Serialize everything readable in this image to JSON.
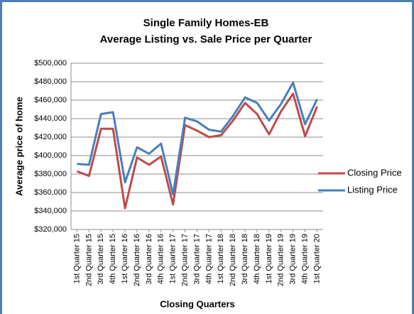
{
  "chart_data": {
    "type": "line",
    "title": [
      "Single Family Homes-EB",
      "Average Listing vs. Sale Price per Quarter"
    ],
    "x_label": "Closing Quarters",
    "y_label": "Average price of home",
    "categories": [
      "1st Quarter 15",
      "2nd Quarter 15",
      "3rd Quarter 15",
      "4th Quarter 15",
      "1st Quarter 16",
      "2nd Quarter 16",
      "3rd Quarter 16",
      "4th Quarter 16",
      "1st Quarter 17",
      "2nd Quarter 17",
      "3rd Quarter 17",
      "4th Quarter 17",
      "1st Quarter 18",
      "2nd Quarter 18",
      "3rd Quarter 18",
      "4th Quarter 18",
      "1st Quarter 19",
      "2nd Quarter 19",
      "3rd Quarter 19",
      "4th Quarter 19",
      "1st Quarter 20"
    ],
    "series": [
      {
        "name": "Closing Price",
        "color": "#be4b48",
        "values": [
          383000,
          378000,
          429000,
          429000,
          343000,
          398000,
          390000,
          399000,
          347000,
          433000,
          427000,
          420000,
          422000,
          438000,
          457000,
          445000,
          423000,
          448000,
          467000,
          421000,
          453000
        ]
      },
      {
        "name": "Listing Price",
        "color": "#4a7ebb",
        "values": [
          391000,
          390000,
          445000,
          447000,
          371000,
          409000,
          402000,
          413000,
          358000,
          441000,
          437000,
          428000,
          426000,
          443000,
          463000,
          457000,
          438000,
          456000,
          479000,
          434000,
          461000
        ]
      }
    ],
    "ylim": [
      320000,
      500000
    ],
    "yticks": [
      {
        "value": 320000,
        "label": "$320,000"
      },
      {
        "value": 340000,
        "label": "$340,000"
      },
      {
        "value": 360000,
        "label": "$360,000"
      },
      {
        "value": 380000,
        "label": "$380,000"
      },
      {
        "value": 400000,
        "label": "$400,000"
      },
      {
        "value": 420000,
        "label": "$420,000"
      },
      {
        "value": 440000,
        "label": "$440,000"
      },
      {
        "value": 460000,
        "label": "$460,000"
      },
      {
        "value": 480000,
        "label": "$480,000"
      },
      {
        "value": 500000,
        "label": "$500,000"
      }
    ],
    "grid": true,
    "legend": "right"
  }
}
